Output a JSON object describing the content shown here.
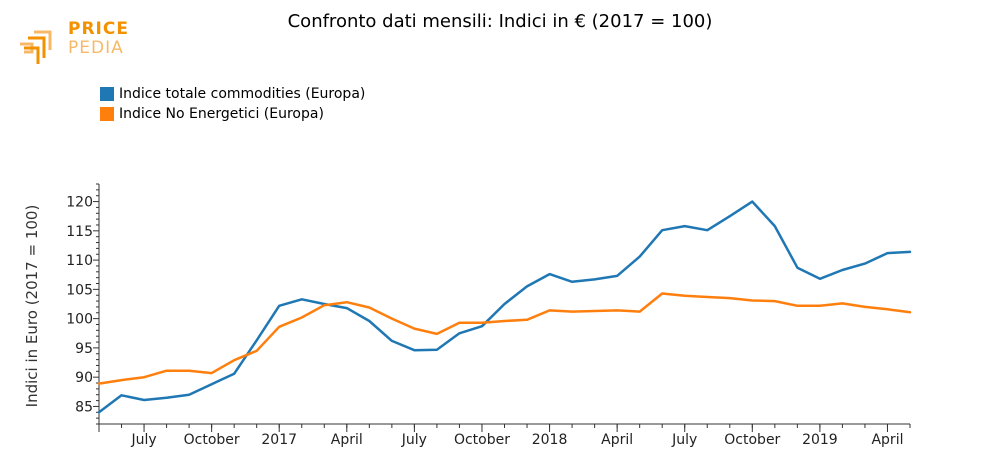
{
  "logo": {
    "price": "PRICE",
    "pedia": "PEDIA"
  },
  "colors": {
    "series1": "#1f77b4",
    "series2": "#ff7f0e",
    "logo": "#f39200"
  },
  "chart_data": {
    "type": "line",
    "title": "Confronto dati mensili: Indici in € (2017 = 100)",
    "xlabel": "",
    "ylabel": "Indici in Euro (2017 = 100)",
    "ylim": [
      82,
      123
    ],
    "yticks": [
      85,
      90,
      95,
      100,
      105,
      110,
      115,
      120
    ],
    "xticks": [
      {
        "index": 2,
        "label": "July"
      },
      {
        "index": 5,
        "label": "October"
      },
      {
        "index": 8,
        "label": "2017"
      },
      {
        "index": 11,
        "label": "April"
      },
      {
        "index": 14,
        "label": "July"
      },
      {
        "index": 17,
        "label": "October"
      },
      {
        "index": 20,
        "label": "2018"
      },
      {
        "index": 23,
        "label": "April"
      },
      {
        "index": 26,
        "label": "July"
      },
      {
        "index": 29,
        "label": "October"
      },
      {
        "index": 32,
        "label": "2019"
      },
      {
        "index": 35,
        "label": "April"
      }
    ],
    "x_count": 37,
    "legend_position": "top-left",
    "series": [
      {
        "name": "Indice totale commodities (Europa)",
        "color": "#1f77b4",
        "values": [
          84.0,
          86.9,
          86.1,
          86.5,
          87.0,
          88.8,
          90.6,
          96.3,
          102.2,
          103.3,
          102.5,
          101.8,
          99.6,
          96.2,
          94.6,
          94.7,
          97.5,
          98.7,
          102.5,
          105.5,
          107.6,
          106.3,
          106.7,
          107.3,
          110.6,
          115.1,
          115.8,
          115.1,
          117.5,
          120.0,
          115.8,
          108.7,
          106.8,
          108.3,
          109.4,
          111.2,
          111.4
        ]
      },
      {
        "name": "Indice No Energetici (Europa)",
        "color": "#ff7f0e",
        "values": [
          88.9,
          89.5,
          90.0,
          91.1,
          91.1,
          90.7,
          92.9,
          94.5,
          98.6,
          100.2,
          102.3,
          102.8,
          101.9,
          100.0,
          98.3,
          97.4,
          99.3,
          99.3,
          99.6,
          99.8,
          101.4,
          101.2,
          101.3,
          101.4,
          101.2,
          104.3,
          103.9,
          103.7,
          103.5,
          103.1,
          103.0,
          102.2,
          102.2,
          102.6,
          102.0,
          101.6,
          101.1
        ]
      }
    ]
  }
}
